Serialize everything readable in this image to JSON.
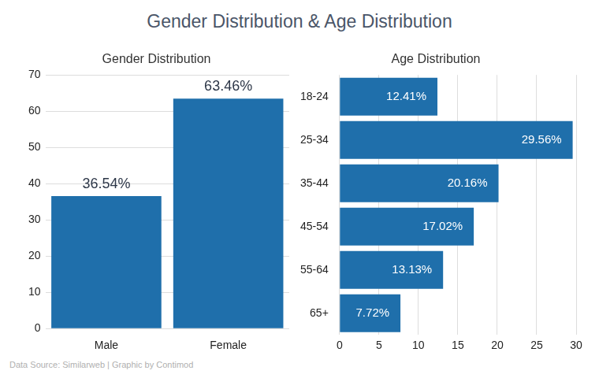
{
  "title": "Gender Distribution & Age Distribution",
  "source": "Data Source: Similarweb | Graphic by Contimod",
  "chart_data": [
    {
      "type": "bar",
      "title": "Gender Distribution",
      "categories": [
        "Male",
        "Female"
      ],
      "values": [
        36.54,
        63.46
      ],
      "value_labels": [
        "36.54%",
        "63.46%"
      ],
      "data_labels": true,
      "color": "#1f6fab",
      "ylim": [
        0,
        70
      ],
      "yticks": [
        0,
        10,
        20,
        30,
        40,
        50,
        60,
        70
      ],
      "grid": true
    },
    {
      "type": "bar",
      "title": "Age Distribution",
      "orientation": "horizontal",
      "categories": [
        "18-24",
        "25-34",
        "35-44",
        "45-54",
        "55-64",
        "65+"
      ],
      "values": [
        12.41,
        29.56,
        20.16,
        17.02,
        13.13,
        7.72
      ],
      "value_labels": [
        "12.41%",
        "29.56%",
        "20.16%",
        "17.02%",
        "13.13%",
        "7.72%"
      ],
      "data_labels": true,
      "color": "#1f6fab",
      "xlim": [
        0,
        30
      ],
      "xticks": [
        0,
        5,
        10,
        15,
        20,
        25,
        30
      ],
      "grid": true
    }
  ]
}
